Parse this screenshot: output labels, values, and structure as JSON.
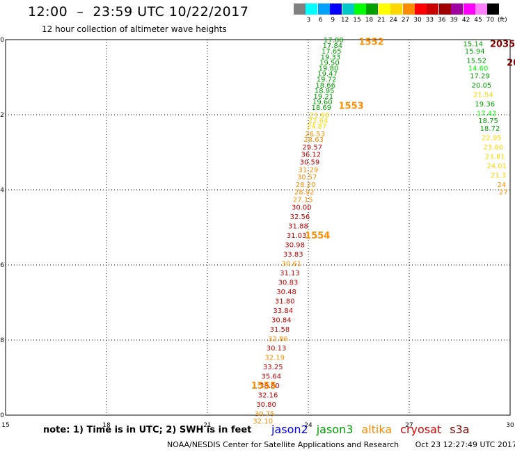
{
  "header": {
    "title": "12:00  –  23:59 UTC 10/22/2017",
    "subtitle": "12 hour collection of altimeter wave heights"
  },
  "legend": {
    "unit": "(ft)",
    "colors": [
      "#808080",
      "#00ffff",
      "#00a0ff",
      "#0000ff",
      "#00c8c8",
      "#00ff00",
      "#00a000",
      "#ffff00",
      "#ffd700",
      "#ff8c00",
      "#ff0000",
      "#c80000",
      "#a00000",
      "#a000a0",
      "#ff00ff",
      "#ff80ff",
      "#000000"
    ],
    "labels": [
      "3",
      "6",
      "9",
      "12",
      "15",
      "18",
      "21",
      "24",
      "27",
      "30",
      "33",
      "36",
      "39",
      "42",
      "45",
      "70"
    ]
  },
  "colors": {
    "jason2": "#0000ff",
    "jason3": "#00a000",
    "altika": "#ff8c00",
    "cryosat": "#e00000",
    "s3a": "#800000",
    "altika_yellow": "#ffd700"
  },
  "map": {
    "x_axis": {
      "min": 15,
      "max": 30,
      "ticks": [
        "15",
        "18",
        "21",
        "24",
        "27",
        "30"
      ],
      "tick_values": [
        15,
        18,
        21,
        24,
        27,
        30
      ]
    },
    "y_axis": {
      "min": -50,
      "max": -40,
      "ticks": [
        "-40",
        "-42",
        "-44",
        "-46",
        "-48",
        "-50"
      ],
      "tick_values": [
        -40,
        -42,
        -44,
        -46,
        -48,
        -50
      ]
    },
    "grid": "dotted",
    "passes": [
      {
        "id": "1552",
        "satellite": "altika",
        "lon": 25.5,
        "lat": -40.05
      },
      {
        "id": "1553",
        "satellite": "altika",
        "lon": 24.9,
        "lat": -41.75
      },
      {
        "id": "1554",
        "satellite": "altika",
        "lon": 23.9,
        "lat": -45.2
      },
      {
        "id": "1555",
        "satellite": "altika",
        "lon": 22.3,
        "lat": -49.2
      },
      {
        "id": "2035",
        "satellite": "s3a",
        "lon": 29.4,
        "lat": -40.1
      },
      {
        "id": "2034",
        "satellite": "s3a",
        "lon": 29.9,
        "lat": -40.6
      }
    ],
    "track_main": [
      {
        "v": "17.88",
        "c": "#00a000",
        "lon": 24.75,
        "lat": -40.0
      },
      {
        "v": "17.84",
        "c": "#00a000",
        "lon": 24.72,
        "lat": -40.15
      },
      {
        "v": "17.65",
        "c": "#00a000",
        "lon": 24.69,
        "lat": -40.3
      },
      {
        "v": "19.33",
        "c": "#00a000",
        "lon": 24.66,
        "lat": -40.45
      },
      {
        "v": "19.50",
        "c": "#00a000",
        "lon": 24.63,
        "lat": -40.6
      },
      {
        "v": "19.80",
        "c": "#00a000",
        "lon": 24.6,
        "lat": -40.75
      },
      {
        "v": "19.47",
        "c": "#00a000",
        "lon": 24.57,
        "lat": -40.9
      },
      {
        "v": "19.72",
        "c": "#00a000",
        "lon": 24.54,
        "lat": -41.05
      },
      {
        "v": "18.66",
        "c": "#00a000",
        "lon": 24.51,
        "lat": -41.2
      },
      {
        "v": "18.95",
        "c": "#00a000",
        "lon": 24.48,
        "lat": -41.35
      },
      {
        "v": "19.21",
        "c": "#00a000",
        "lon": 24.45,
        "lat": -41.5
      },
      {
        "v": "19.60",
        "c": "#00a000",
        "lon": 24.42,
        "lat": -41.65
      },
      {
        "v": "18.69",
        "c": "#00a000",
        "lon": 24.39,
        "lat": -41.8
      },
      {
        "v": "21.60",
        "c": "#ffd700",
        "lon": 24.33,
        "lat": -42.0
      },
      {
        "v": "22.64",
        "c": "#ffd700",
        "lon": 24.29,
        "lat": -42.15
      },
      {
        "v": "24.87",
        "c": "#ffd700",
        "lon": 24.25,
        "lat": -42.3
      },
      {
        "v": "26.53",
        "c": "#ff8c00",
        "lon": 24.2,
        "lat": -42.5
      },
      {
        "v": "28.63",
        "c": "#ff8c00",
        "lon": 24.16,
        "lat": -42.65
      },
      {
        "v": "29.57",
        "c": "#c80000",
        "lon": 24.12,
        "lat": -42.85
      },
      {
        "v": "36.12",
        "c": "#c80000",
        "lon": 24.08,
        "lat": -43.05
      },
      {
        "v": "30.59",
        "c": "#c80000",
        "lon": 24.04,
        "lat": -43.25
      },
      {
        "v": "31.29",
        "c": "#ff8c00",
        "lon": 24.0,
        "lat": -43.45
      },
      {
        "v": "30.57",
        "c": "#ff8c00",
        "lon": 23.96,
        "lat": -43.65
      },
      {
        "v": "28.20",
        "c": "#ff8c00",
        "lon": 23.92,
        "lat": -43.85
      },
      {
        "v": "28.92",
        "c": "#ff8c00",
        "lon": 23.88,
        "lat": -44.05
      },
      {
        "v": "27.15",
        "c": "#ff8c00",
        "lon": 23.84,
        "lat": -44.25
      },
      {
        "v": "30.00",
        "c": "#c80000",
        "lon": 23.8,
        "lat": -44.45
      },
      {
        "v": "32.56",
        "c": "#c80000",
        "lon": 23.75,
        "lat": -44.7
      },
      {
        "v": "31.88",
        "c": "#c80000",
        "lon": 23.7,
        "lat": -44.95
      },
      {
        "v": "31.03",
        "c": "#c80000",
        "lon": 23.65,
        "lat": -45.2
      },
      {
        "v": "30.98",
        "c": "#c80000",
        "lon": 23.6,
        "lat": -45.45
      },
      {
        "v": "33.83",
        "c": "#c80000",
        "lon": 23.55,
        "lat": -45.7
      },
      {
        "v": "30.61",
        "c": "#ff8c00",
        "lon": 23.5,
        "lat": -45.95
      },
      {
        "v": "31.13",
        "c": "#c80000",
        "lon": 23.45,
        "lat": -46.2
      },
      {
        "v": "30.83",
        "c": "#c80000",
        "lon": 23.4,
        "lat": -46.45
      },
      {
        "v": "30.48",
        "c": "#c80000",
        "lon": 23.35,
        "lat": -46.7
      },
      {
        "v": "31.80",
        "c": "#c80000",
        "lon": 23.3,
        "lat": -46.95
      },
      {
        "v": "33.84",
        "c": "#c80000",
        "lon": 23.25,
        "lat": -47.2
      },
      {
        "v": "30.84",
        "c": "#c80000",
        "lon": 23.2,
        "lat": -47.45
      },
      {
        "v": "31.58",
        "c": "#c80000",
        "lon": 23.15,
        "lat": -47.7
      },
      {
        "v": "32.86",
        "c": "#ff8c00",
        "lon": 23.1,
        "lat": -47.95
      },
      {
        "v": "30.13",
        "c": "#c80000",
        "lon": 23.05,
        "lat": -48.2
      },
      {
        "v": "32.19",
        "c": "#ff8c00",
        "lon": 23.0,
        "lat": -48.45
      },
      {
        "v": "33.25",
        "c": "#c80000",
        "lon": 22.95,
        "lat": -48.7
      },
      {
        "v": "35.64",
        "c": "#c80000",
        "lon": 22.9,
        "lat": -48.95
      },
      {
        "v": "38.80",
        "c": "#c80000",
        "lon": 22.85,
        "lat": -49.2
      },
      {
        "v": "32.16",
        "c": "#c80000",
        "lon": 22.8,
        "lat": -49.45
      },
      {
        "v": "30.80",
        "c": "#c80000",
        "lon": 22.75,
        "lat": -49.7
      },
      {
        "v": "30.75",
        "c": "#ff8c00",
        "lon": 22.7,
        "lat": -49.95
      },
      {
        "v": "32.10",
        "c": "#ff8c00",
        "lon": 22.65,
        "lat": -50.15
      },
      {
        "v": "30.11",
        "c": "#ff8c00",
        "lon": 22.6,
        "lat": -50.35
      }
    ],
    "track_east": [
      {
        "v": "15.14",
        "c": "#00a000",
        "lon": 28.9,
        "lat": -40.1
      },
      {
        "v": "15.94",
        "c": "#00a000",
        "lon": 28.95,
        "lat": -40.3
      },
      {
        "v": "15.52",
        "c": "#00a000",
        "lon": 29.0,
        "lat": -40.55
      },
      {
        "v": "14.60",
        "c": "#00ff00",
        "lon": 29.05,
        "lat": -40.75
      },
      {
        "v": "17.29",
        "c": "#00a000",
        "lon": 29.1,
        "lat": -40.95
      },
      {
        "v": "20.05",
        "c": "#00a000",
        "lon": 29.15,
        "lat": -41.2
      },
      {
        "v": "21.54",
        "c": "#ffd700",
        "lon": 29.2,
        "lat": -41.45
      },
      {
        "v": "19.36",
        "c": "#00a000",
        "lon": 29.25,
        "lat": -41.7
      },
      {
        "v": "17.42",
        "c": "#00ff00",
        "lon": 29.3,
        "lat": -41.95
      },
      {
        "v": "18.75",
        "c": "#00a000",
        "lon": 29.35,
        "lat": -42.15
      },
      {
        "v": "18.72",
        "c": "#00a000",
        "lon": 29.4,
        "lat": -42.35
      },
      {
        "v": "22.95",
        "c": "#ffd700",
        "lon": 29.45,
        "lat": -42.6
      },
      {
        "v": "23.60",
        "c": "#ffd700",
        "lon": 29.5,
        "lat": -42.85
      },
      {
        "v": "23.81",
        "c": "#ffd700",
        "lon": 29.55,
        "lat": -43.1
      },
      {
        "v": "24.01",
        "c": "#ffd700",
        "lon": 29.6,
        "lat": -43.35
      },
      {
        "v": "21.3",
        "c": "#ffd700",
        "lon": 29.65,
        "lat": -43.6
      },
      {
        "v": "24",
        "c": "#ff8c00",
        "lon": 29.75,
        "lat": -43.85
      },
      {
        "v": "27",
        "c": "#ff8c00",
        "lon": 29.8,
        "lat": -44.05
      }
    ]
  },
  "footer": {
    "note": "note: 1) Time is in UTC; 2) SWH is in feet",
    "satellites": [
      {
        "name": "jason2",
        "color": "#0000ff"
      },
      {
        "name": "jason3",
        "color": "#00a000"
      },
      {
        "name": "altika",
        "color": "#ff8c00"
      },
      {
        "name": "cryosat",
        "color": "#e00000"
      },
      {
        "name": "s3a",
        "color": "#800000"
      }
    ],
    "credit": "NOAA/NESDIS Center for Satellite Applications and Research",
    "timestamp": "Oct 23 12:27:49 UTC 2017"
  }
}
